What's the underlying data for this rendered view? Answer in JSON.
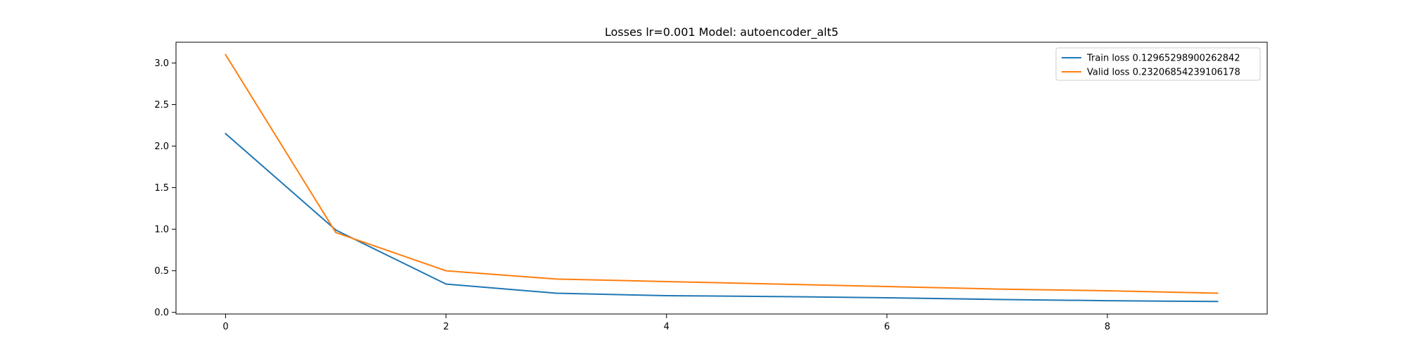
{
  "chart_data": {
    "type": "line",
    "title": "Losses lr=0.001 Model: autoencoder_alt5",
    "xlabel": "",
    "ylabel": "",
    "x": [
      0,
      1,
      2,
      3,
      4,
      5,
      6,
      7,
      8,
      9
    ],
    "xlim": [
      -0.45,
      9.45
    ],
    "ylim": [
      -0.02,
      3.25
    ],
    "xticks": [
      0,
      2,
      4,
      6,
      8
    ],
    "yticks": [
      0.0,
      0.5,
      1.0,
      1.5,
      2.0,
      2.5,
      3.0
    ],
    "xtick_labels": [
      "0",
      "2",
      "4",
      "6",
      "8"
    ],
    "ytick_labels": [
      "0.0",
      "0.5",
      "1.0",
      "1.5",
      "2.0",
      "2.5",
      "3.0"
    ],
    "grid": false,
    "legend_position": "top-right",
    "series": [
      {
        "name": "Train loss 0.12965298900262842",
        "color": "#1f77b4",
        "values": [
          2.15,
          0.99,
          0.34,
          0.23,
          0.2,
          0.19,
          0.175,
          0.155,
          0.14,
          0.13
        ]
      },
      {
        "name": "Valid loss 0.23206854239106178",
        "color": "#ff7f0e",
        "values": [
          3.1,
          0.96,
          0.5,
          0.4,
          0.37,
          0.34,
          0.31,
          0.28,
          0.26,
          0.23
        ]
      }
    ]
  }
}
